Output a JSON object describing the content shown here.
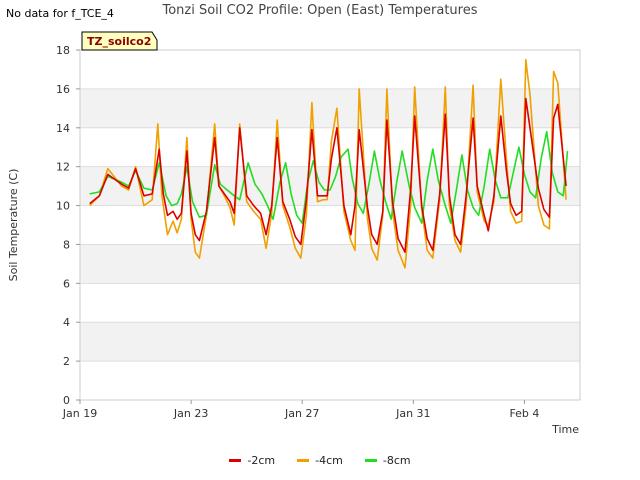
{
  "page": {
    "corner_note": "No data for f_TCE_4",
    "title": "Tonzi Soil CO2 Profile: Open (East) Temperatures",
    "tag_label": "TZ_soilco2"
  },
  "chart_data": {
    "type": "line",
    "title": "Tonzi Soil CO2 Profile: Open (East) Temperatures",
    "xlabel": "Time",
    "ylabel": "Soil Temperature (C)",
    "ylim": [
      0,
      18
    ],
    "yticks": [
      0,
      2,
      4,
      6,
      8,
      10,
      12,
      14,
      16,
      18
    ],
    "xlim": [
      0,
      18
    ],
    "xticks": [
      {
        "pos": 0,
        "label": "Jan 19"
      },
      {
        "pos": 4,
        "label": "Jan 23"
      },
      {
        "pos": 8,
        "label": "Jan 27"
      },
      {
        "pos": 12,
        "label": "Jan 31"
      },
      {
        "pos": 16,
        "label": "Feb 4"
      }
    ],
    "grid": true,
    "legend_position": "bottom",
    "series": [
      {
        "name": "-2cm",
        "color": "#dd0000",
        "x": [
          0.35,
          0.7,
          1.0,
          1.5,
          1.75,
          2.0,
          2.3,
          2.6,
          2.85,
          3.0,
          3.15,
          3.35,
          3.5,
          3.65,
          3.85,
          4.0,
          4.15,
          4.3,
          4.55,
          4.85,
          5.0,
          5.2,
          5.4,
          5.55,
          5.75,
          6.0,
          6.25,
          6.5,
          6.7,
          6.9,
          7.1,
          7.3,
          7.55,
          7.75,
          7.95,
          8.15,
          8.35,
          8.55,
          8.75,
          8.9,
          9.05,
          9.25,
          9.5,
          9.75,
          9.9,
          10.05,
          10.35,
          10.5,
          10.7,
          10.9,
          11.05,
          11.25,
          11.45,
          11.7,
          11.9,
          12.05,
          12.3,
          12.5,
          12.7,
          12.95,
          13.15,
          13.3,
          13.5,
          13.7,
          13.9,
          14.15,
          14.3,
          14.55,
          14.7,
          14.9,
          15.15,
          15.35,
          15.5,
          15.7,
          15.9,
          16.05,
          16.2,
          16.5,
          16.7,
          16.9,
          17.05,
          17.2,
          17.5
        ],
        "values": [
          10.1,
          10.5,
          11.6,
          11.1,
          10.9,
          11.9,
          10.5,
          10.6,
          12.9,
          10.6,
          9.5,
          9.7,
          9.3,
          9.6,
          12.8,
          9.6,
          8.5,
          8.2,
          9.7,
          13.5,
          11.0,
          10.6,
          10.2,
          9.6,
          14.0,
          10.5,
          10.0,
          9.6,
          8.5,
          10.0,
          13.5,
          10.2,
          9.3,
          8.4,
          8.0,
          10.3,
          13.9,
          10.5,
          10.5,
          10.5,
          12.4,
          14.0,
          10.0,
          8.5,
          10.0,
          13.9,
          9.9,
          8.5,
          8.0,
          9.7,
          14.4,
          10.2,
          8.3,
          7.6,
          10.8,
          14.6,
          10.0,
          8.3,
          7.7,
          10.6,
          14.7,
          10.5,
          8.5,
          8.0,
          10.5,
          14.5,
          11.0,
          9.5,
          8.7,
          10.5,
          14.6,
          11.8,
          10.1,
          9.5,
          9.7,
          15.5,
          14.0,
          10.9,
          9.8,
          9.4,
          14.5,
          15.2,
          11.0
        ]
      },
      {
        "name": "-4cm",
        "color": "#f0a000",
        "x": [
          0.35,
          0.7,
          1.0,
          1.5,
          1.75,
          2.0,
          2.3,
          2.6,
          2.8,
          2.95,
          3.15,
          3.35,
          3.5,
          3.65,
          3.85,
          4.0,
          4.15,
          4.3,
          4.55,
          4.85,
          5.0,
          5.2,
          5.4,
          5.55,
          5.75,
          6.0,
          6.25,
          6.5,
          6.7,
          6.9,
          7.1,
          7.3,
          7.55,
          7.75,
          7.95,
          8.15,
          8.35,
          8.55,
          8.75,
          8.9,
          9.05,
          9.25,
          9.5,
          9.75,
          9.9,
          10.05,
          10.35,
          10.5,
          10.7,
          10.9,
          11.05,
          11.25,
          11.45,
          11.7,
          11.9,
          12.05,
          12.3,
          12.5,
          12.7,
          12.95,
          13.15,
          13.3,
          13.5,
          13.7,
          13.9,
          14.15,
          14.3,
          14.55,
          14.7,
          14.9,
          15.15,
          15.35,
          15.5,
          15.7,
          15.9,
          16.05,
          16.2,
          16.5,
          16.7,
          16.9,
          17.05,
          17.2,
          17.5
        ],
        "values": [
          10.0,
          10.5,
          11.9,
          11.0,
          10.8,
          12.0,
          10.0,
          10.3,
          14.2,
          10.5,
          8.5,
          9.2,
          8.6,
          9.3,
          13.5,
          9.3,
          7.6,
          7.3,
          9.5,
          14.2,
          11.0,
          10.5,
          9.9,
          9.0,
          14.2,
          10.2,
          9.7,
          9.3,
          7.8,
          9.6,
          14.4,
          10.0,
          8.9,
          7.8,
          7.3,
          9.5,
          15.3,
          10.2,
          10.3,
          10.3,
          13.3,
          15.0,
          9.7,
          8.2,
          7.7,
          16.0,
          9.3,
          7.8,
          7.2,
          9.5,
          16.0,
          9.7,
          7.7,
          6.8,
          10.0,
          16.1,
          9.8,
          7.7,
          7.3,
          10.3,
          16.1,
          10.0,
          8.2,
          7.6,
          10.0,
          16.2,
          10.7,
          9.2,
          9.0,
          10.2,
          16.5,
          12.4,
          9.7,
          9.1,
          9.2,
          17.5,
          15.7,
          10.0,
          9.0,
          8.8,
          16.9,
          16.3,
          10.3
        ]
      },
      {
        "name": "-8cm",
        "color": "#22dd22",
        "x": [
          0.35,
          0.7,
          1.0,
          1.5,
          1.75,
          2.0,
          2.3,
          2.6,
          2.85,
          3.1,
          3.3,
          3.5,
          3.65,
          3.85,
          4.05,
          4.3,
          4.55,
          4.85,
          5.05,
          5.3,
          5.55,
          5.75,
          6.05,
          6.3,
          6.55,
          6.75,
          6.95,
          7.2,
          7.4,
          7.6,
          7.8,
          8.0,
          8.2,
          8.4,
          8.6,
          8.8,
          9.0,
          9.2,
          9.4,
          9.65,
          9.8,
          10.0,
          10.2,
          10.4,
          10.6,
          10.8,
          11.0,
          11.2,
          11.4,
          11.6,
          11.85,
          12.05,
          12.3,
          12.5,
          12.7,
          12.9,
          13.15,
          13.35,
          13.55,
          13.75,
          13.95,
          14.15,
          14.35,
          14.55,
          14.75,
          14.95,
          15.15,
          15.4,
          15.6,
          15.8,
          16.0,
          16.2,
          16.4,
          16.6,
          16.8,
          17.0,
          17.2,
          17.4,
          17.55
        ],
        "values": [
          10.6,
          10.7,
          11.5,
          11.2,
          11.0,
          11.8,
          10.9,
          10.8,
          12.2,
          10.5,
          10.0,
          10.1,
          10.6,
          12.0,
          10.2,
          9.4,
          9.5,
          12.1,
          11.1,
          10.8,
          10.5,
          10.3,
          12.2,
          11.1,
          10.6,
          10.0,
          9.3,
          11.2,
          12.2,
          10.6,
          9.5,
          9.1,
          11.2,
          12.3,
          11.2,
          10.8,
          10.8,
          11.5,
          12.5,
          12.9,
          11.4,
          10.1,
          9.6,
          11.1,
          12.8,
          11.3,
          10.2,
          9.3,
          11.2,
          12.8,
          11.0,
          9.9,
          9.1,
          11.3,
          12.9,
          11.3,
          10.0,
          9.1,
          10.8,
          12.6,
          10.8,
          9.9,
          9.5,
          11.0,
          12.9,
          11.3,
          10.4,
          10.4,
          11.7,
          13.0,
          11.6,
          10.7,
          10.4,
          12.4,
          13.8,
          11.7,
          10.7,
          10.5,
          12.8
        ]
      }
    ]
  }
}
